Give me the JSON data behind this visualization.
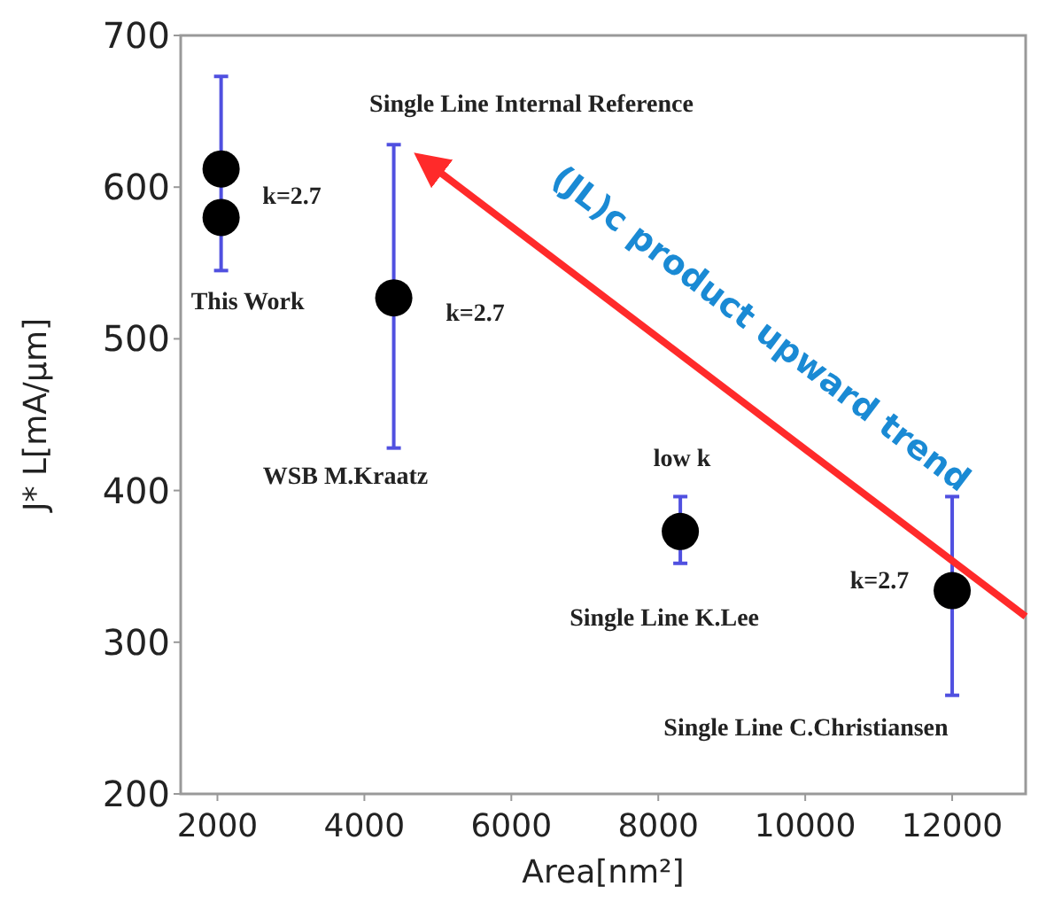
{
  "chart_data": {
    "type": "scatter",
    "xlabel": "Area[nm²]",
    "ylabel": "J* L[mA/μm]",
    "xlim": [
      1500,
      13000
    ],
    "ylim": [
      200,
      700
    ],
    "xticks": [
      2000,
      4000,
      6000,
      8000,
      10000,
      12000
    ],
    "yticks": [
      200,
      300,
      400,
      500,
      600,
      700
    ],
    "grid": false,
    "marker": "circle",
    "series": [
      {
        "color": "#000000",
        "x": [
          2050,
          2050,
          4400,
          8300,
          12000
        ],
        "values": [
          612,
          580,
          527,
          373,
          334
        ],
        "errors": [
          null,
          [
            545,
            673
          ],
          [
            428,
            628
          ],
          [
            352,
            396
          ],
          [
            265,
            396
          ]
        ]
      },
      {
        "type": "line",
        "color": "#ff2a2a",
        "x": [
          13000,
          4750
        ],
        "values": [
          317,
          620
        ],
        "marker": "none"
      }
    ],
    "annotations": [
      "Single Line Internal Reference",
      {
        "text": "k=2.7",
        "x": 2050,
        "y": 612
      },
      {
        "text": "This Work",
        "x": 2050,
        "y": 580
      },
      {
        "text": "k=2.7",
        "x": 4400,
        "y": 527
      },
      "WSB M.Kraatz",
      {
        "text": "low k",
        "x": 8300,
        "y": 373
      },
      {
        "text": "Single Line K.Lee",
        "x": 8300,
        "y": 373
      },
      {
        "text": "k=2.7",
        "x": 12000,
        "y": 334
      },
      "Single Line C.Christiansen",
      {
        "text": "(JL)c product upward trend",
        "x": 8875,
        "y": 468.5
      }
    ]
  }
}
